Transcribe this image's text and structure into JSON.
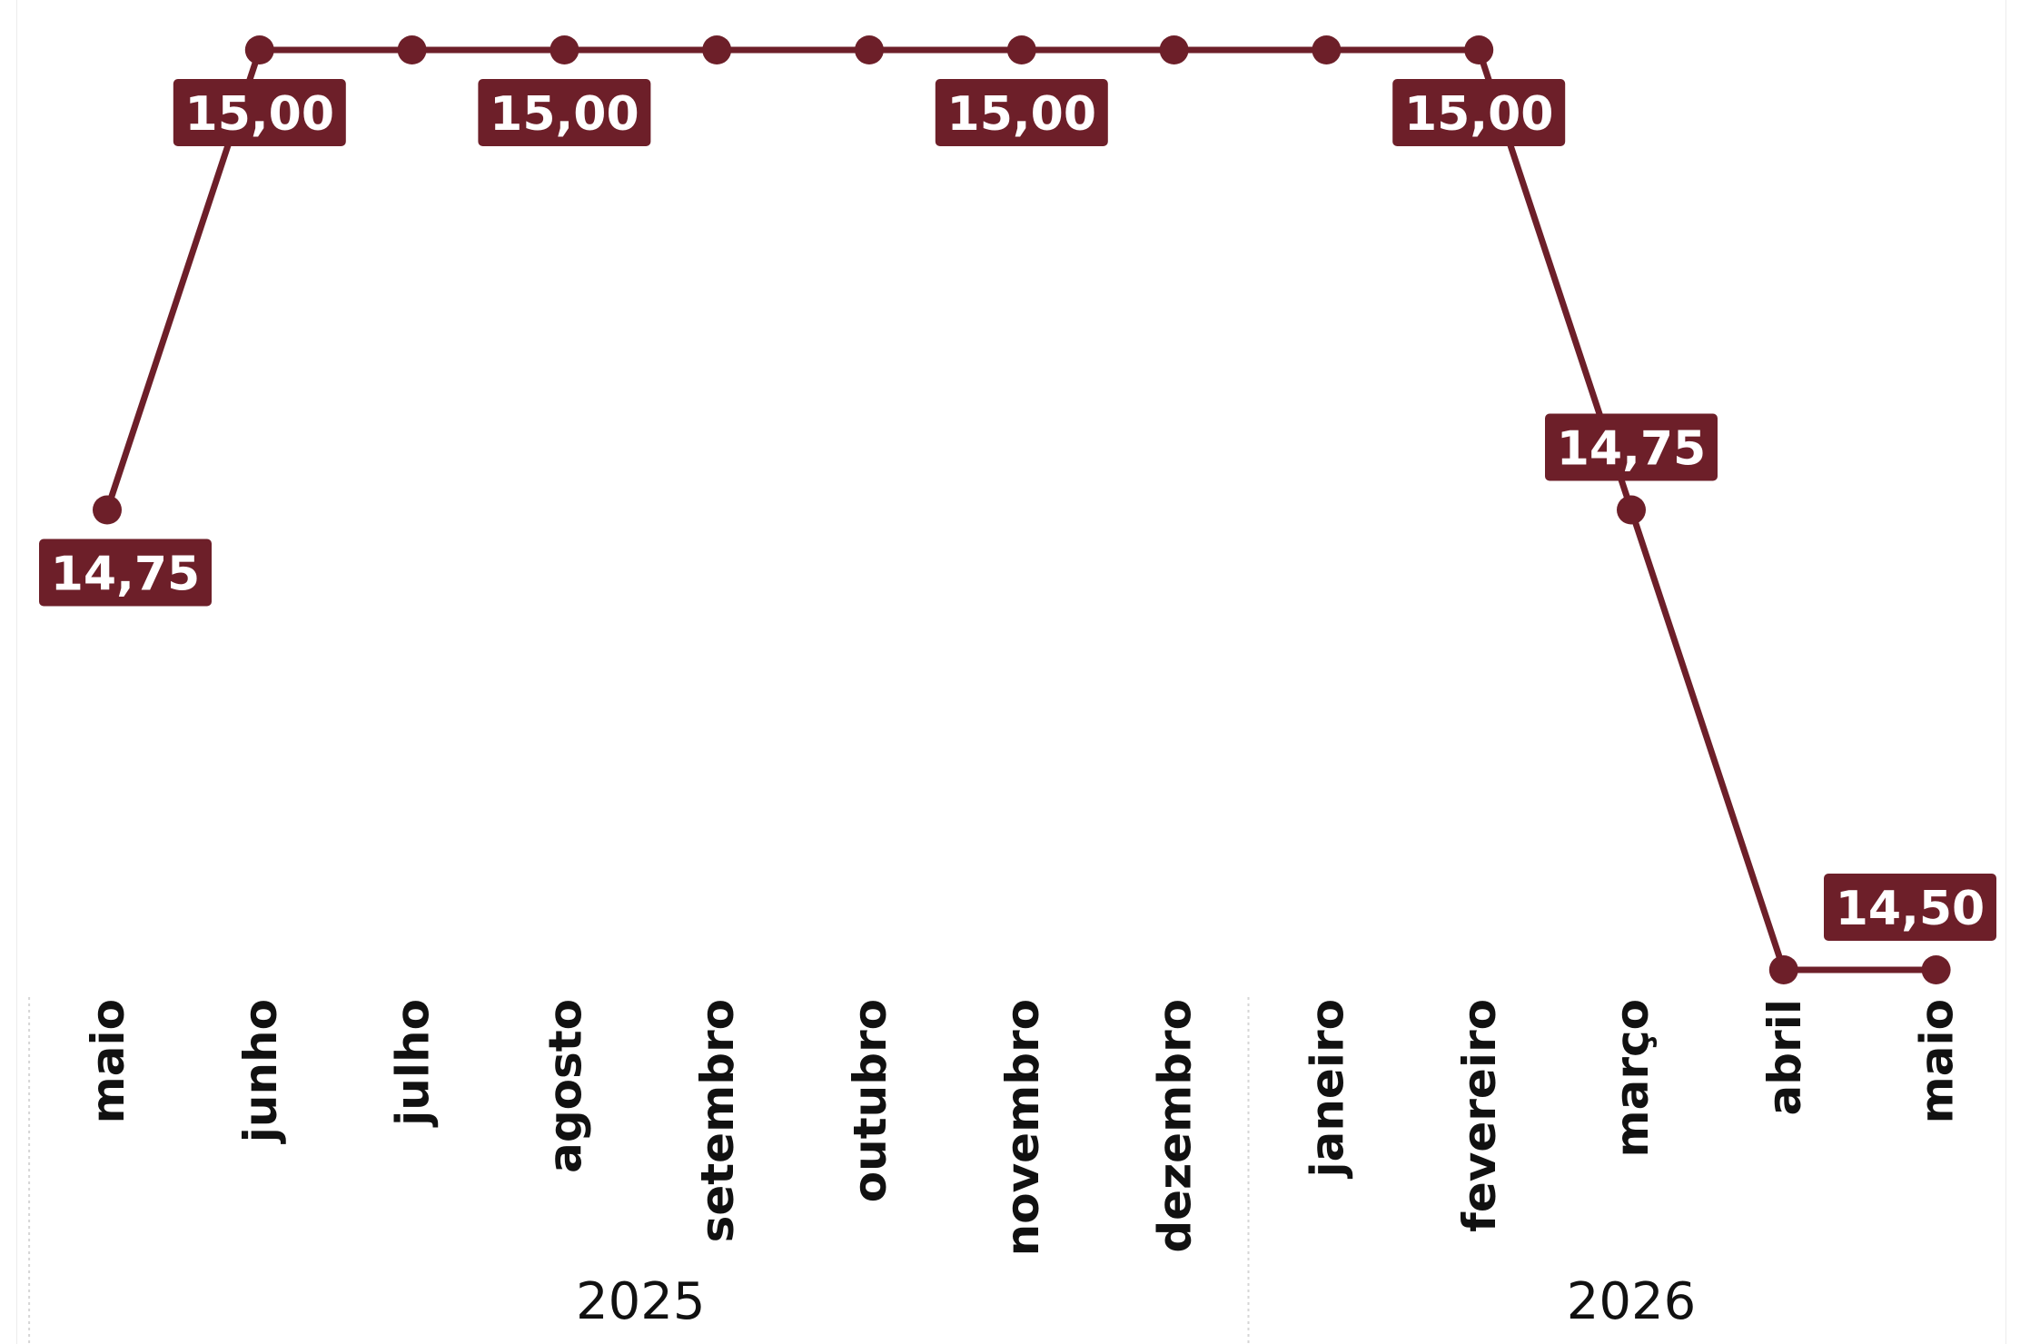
{
  "chart_data": {
    "type": "line",
    "title": "",
    "xlabel": "",
    "ylabel": "",
    "categories": [
      "maio",
      "junho",
      "julho",
      "agosto",
      "setembro",
      "outubro",
      "novembro",
      "dezembro",
      "janeiro",
      "fevereiro",
      "março",
      "abril",
      "maio"
    ],
    "years": [
      {
        "label": "2025",
        "months": [
          "maio",
          "junho",
          "julho",
          "agosto",
          "setembro",
          "outubro",
          "novembro",
          "dezembro"
        ]
      },
      {
        "label": "2026",
        "months": [
          "janeiro",
          "fevereiro",
          "março",
          "abril",
          "maio"
        ]
      }
    ],
    "series": [
      {
        "values": [
          14.75,
          15.0,
          15.0,
          15.0,
          15.0,
          15.0,
          15.0,
          15.0,
          15.0,
          15.0,
          14.75,
          14.5,
          14.5
        ]
      }
    ],
    "data_labels": [
      {
        "index": 0,
        "text": "14,75",
        "placement": "below"
      },
      {
        "index": 1,
        "text": "15,00",
        "placement": "below"
      },
      {
        "index": 3,
        "text": "15,00",
        "placement": "below"
      },
      {
        "index": 6,
        "text": "15,00",
        "placement": "below"
      },
      {
        "index": 9,
        "text": "15,00",
        "placement": "below"
      },
      {
        "index": 10,
        "text": "14,75",
        "placement": "above"
      },
      {
        "index": 12,
        "text": "14,50",
        "placement": "above"
      }
    ],
    "ylim": [
      14.5,
      15.0
    ],
    "grid": false,
    "colors": {
      "series": "#6d1f29",
      "label_bg": "#6d1f29",
      "label_text": "#ffffff"
    }
  }
}
